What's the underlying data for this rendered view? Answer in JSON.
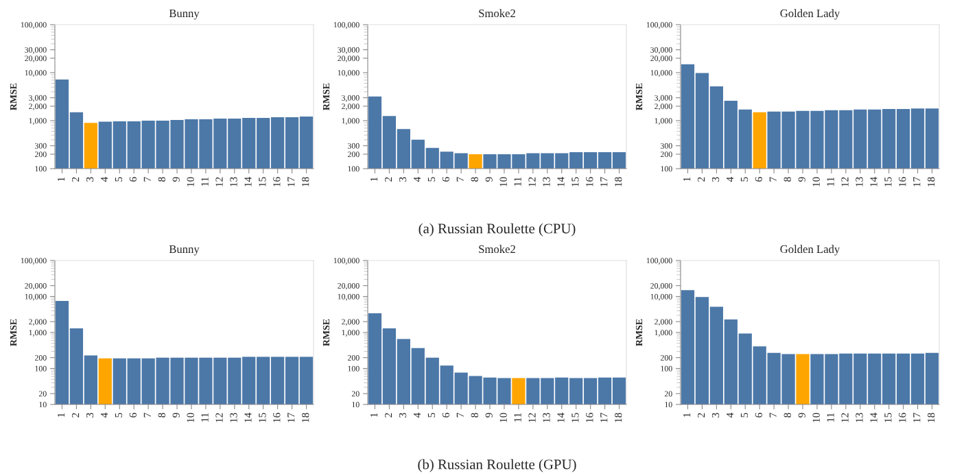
{
  "chart_data": [
    {
      "type": "bar",
      "title": "Bunny",
      "ylabel": "RMSE",
      "log": true,
      "categories": [
        "1",
        "2",
        "3",
        "4",
        "5",
        "6",
        "7",
        "8",
        "9",
        "10",
        "11",
        "12",
        "13",
        "14",
        "15",
        "16",
        "17",
        "18"
      ],
      "values": [
        7200,
        1500,
        900,
        950,
        970,
        970,
        1000,
        1000,
        1030,
        1070,
        1070,
        1100,
        1100,
        1140,
        1140,
        1180,
        1180,
        1220
      ],
      "colors": [
        "#4c78a8",
        "#4c78a8",
        "#ffa500",
        "#4c78a8",
        "#4c78a8",
        "#4c78a8",
        "#4c78a8",
        "#4c78a8",
        "#4c78a8",
        "#4c78a8",
        "#4c78a8",
        "#4c78a8",
        "#4c78a8",
        "#4c78a8",
        "#4c78a8",
        "#4c78a8",
        "#4c78a8",
        "#4c78a8"
      ],
      "ylim": [
        100,
        100000
      ],
      "yticks": [
        100,
        200,
        300,
        {
          "value": 1000,
          "label": "1,000"
        },
        {
          "value": 2000,
          "label": "2,000"
        },
        {
          "value": 3000,
          "label": "3,000"
        },
        {
          "value": 10000,
          "label": "10,000"
        },
        {
          "value": 20000,
          "label": "20,000"
        },
        {
          "value": 30000,
          "label": "30,000"
        },
        {
          "value": 100000,
          "label": "100,000"
        }
      ]
    },
    {
      "type": "bar",
      "title": "Smoke2",
      "ylabel": "RMSE",
      "log": true,
      "categories": [
        "1",
        "2",
        "3",
        "4",
        "5",
        "6",
        "7",
        "8",
        "9",
        "10",
        "11",
        "12",
        "13",
        "14",
        "15",
        "16",
        "17",
        "18"
      ],
      "values": [
        3200,
        1250,
        670,
        400,
        270,
        225,
        210,
        200,
        200,
        200,
        200,
        210,
        210,
        210,
        220,
        220,
        220,
        220
      ],
      "colors": [
        "#4c78a8",
        "#4c78a8",
        "#4c78a8",
        "#4c78a8",
        "#4c78a8",
        "#4c78a8",
        "#4c78a8",
        "#ffa500",
        "#4c78a8",
        "#4c78a8",
        "#4c78a8",
        "#4c78a8",
        "#4c78a8",
        "#4c78a8",
        "#4c78a8",
        "#4c78a8",
        "#4c78a8",
        "#4c78a8"
      ],
      "ylim": [
        100,
        100000
      ],
      "yticks": [
        100,
        200,
        300,
        {
          "value": 1000,
          "label": "1,000"
        },
        {
          "value": 2000,
          "label": "2,000"
        },
        {
          "value": 3000,
          "label": "3,000"
        },
        {
          "value": 10000,
          "label": "10,000"
        },
        {
          "value": 20000,
          "label": "20,000"
        },
        {
          "value": 30000,
          "label": "30,000"
        },
        {
          "value": 100000,
          "label": "100,000"
        }
      ],
      "annotations": [
        "(a) Russian Roulette (CPU)"
      ]
    },
    {
      "type": "bar",
      "title": "Golden Lady",
      "ylabel": "RMSE",
      "log": true,
      "categories": [
        "1",
        "2",
        "3",
        "4",
        "5",
        "6",
        "7",
        "8",
        "9",
        "10",
        "11",
        "12",
        "13",
        "14",
        "15",
        "16",
        "17",
        "18"
      ],
      "values": [
        15000,
        9800,
        5200,
        2600,
        1700,
        1500,
        1550,
        1550,
        1600,
        1600,
        1650,
        1650,
        1700,
        1700,
        1750,
        1750,
        1800,
        1800
      ],
      "colors": [
        "#4c78a8",
        "#4c78a8",
        "#4c78a8",
        "#4c78a8",
        "#4c78a8",
        "#ffa500",
        "#4c78a8",
        "#4c78a8",
        "#4c78a8",
        "#4c78a8",
        "#4c78a8",
        "#4c78a8",
        "#4c78a8",
        "#4c78a8",
        "#4c78a8",
        "#4c78a8",
        "#4c78a8",
        "#4c78a8"
      ],
      "ylim": [
        100,
        100000
      ],
      "yticks": [
        100,
        200,
        300,
        {
          "value": 1000,
          "label": "1,000"
        },
        {
          "value": 2000,
          "label": "2,000"
        },
        {
          "value": 3000,
          "label": "3,000"
        },
        {
          "value": 10000,
          "label": "10,000"
        },
        {
          "value": 20000,
          "label": "20,000"
        },
        {
          "value": 30000,
          "label": "30,000"
        },
        {
          "value": 100000,
          "label": "100,000"
        }
      ]
    },
    {
      "type": "bar",
      "title": "Bunny",
      "ylabel": "RMSE",
      "log": true,
      "categories": [
        "1",
        "2",
        "3",
        "4",
        "5",
        "6",
        "7",
        "8",
        "9",
        "10",
        "11",
        "12",
        "13",
        "14",
        "15",
        "16",
        "17",
        "18"
      ],
      "values": [
        7500,
        1300,
        230,
        190,
        190,
        190,
        190,
        200,
        200,
        200,
        200,
        200,
        200,
        210,
        210,
        210,
        210,
        210
      ],
      "colors": [
        "#4c78a8",
        "#4c78a8",
        "#4c78a8",
        "#ffa500",
        "#4c78a8",
        "#4c78a8",
        "#4c78a8",
        "#4c78a8",
        "#4c78a8",
        "#4c78a8",
        "#4c78a8",
        "#4c78a8",
        "#4c78a8",
        "#4c78a8",
        "#4c78a8",
        "#4c78a8",
        "#4c78a8",
        "#4c78a8"
      ],
      "ylim": [
        10,
        100000
      ],
      "yticks": [
        10,
        20,
        100,
        200,
        {
          "value": 1000,
          "label": "1,000"
        },
        {
          "value": 2000,
          "label": "2,000"
        },
        {
          "value": 10000,
          "label": "10,000"
        },
        {
          "value": 20000,
          "label": "20,000"
        },
        {
          "value": 100000,
          "label": "100,000"
        }
      ]
    },
    {
      "type": "bar",
      "title": "Smoke2",
      "ylabel": "RMSE",
      "log": true,
      "categories": [
        "1",
        "2",
        "3",
        "4",
        "5",
        "6",
        "7",
        "8",
        "9",
        "10",
        "11",
        "12",
        "13",
        "14",
        "15",
        "16",
        "17",
        "18"
      ],
      "values": [
        3400,
        1300,
        660,
        370,
        200,
        120,
        77,
        62,
        56,
        54,
        54,
        54,
        54,
        56,
        54,
        54,
        56,
        56
      ],
      "colors": [
        "#4c78a8",
        "#4c78a8",
        "#4c78a8",
        "#4c78a8",
        "#4c78a8",
        "#4c78a8",
        "#4c78a8",
        "#4c78a8",
        "#4c78a8",
        "#4c78a8",
        "#ffa500",
        "#4c78a8",
        "#4c78a8",
        "#4c78a8",
        "#4c78a8",
        "#4c78a8",
        "#4c78a8",
        "#4c78a8"
      ],
      "ylim": [
        10,
        100000
      ],
      "yticks": [
        10,
        20,
        100,
        200,
        {
          "value": 1000,
          "label": "1,000"
        },
        {
          "value": 2000,
          "label": "2,000"
        },
        {
          "value": 10000,
          "label": "10,000"
        },
        {
          "value": 20000,
          "label": "20,000"
        },
        {
          "value": 100000,
          "label": "100,000"
        }
      ],
      "annotations": [
        "(b) Russian Roulette (GPU)"
      ]
    },
    {
      "type": "bar",
      "title": "Golden Lady",
      "ylabel": "RMSE",
      "log": true,
      "categories": [
        "1",
        "2",
        "3",
        "4",
        "5",
        "6",
        "7",
        "8",
        "9",
        "10",
        "11",
        "12",
        "13",
        "14",
        "15",
        "16",
        "17",
        "18"
      ],
      "values": [
        15000,
        9700,
        5200,
        2300,
        940,
        410,
        270,
        250,
        250,
        250,
        250,
        260,
        260,
        260,
        260,
        260,
        260,
        270
      ],
      "colors": [
        "#4c78a8",
        "#4c78a8",
        "#4c78a8",
        "#4c78a8",
        "#4c78a8",
        "#4c78a8",
        "#4c78a8",
        "#4c78a8",
        "#ffa500",
        "#4c78a8",
        "#4c78a8",
        "#4c78a8",
        "#4c78a8",
        "#4c78a8",
        "#4c78a8",
        "#4c78a8",
        "#4c78a8",
        "#4c78a8"
      ],
      "ylim": [
        10,
        100000
      ],
      "yticks": [
        10,
        20,
        100,
        200,
        {
          "value": 1000,
          "label": "1,000"
        },
        {
          "value": 2000,
          "label": "2,000"
        },
        {
          "value": 10000,
          "label": "10,000"
        },
        {
          "value": 20000,
          "label": "20,000"
        },
        {
          "value": 100000,
          "label": "100,000"
        }
      ]
    }
  ]
}
